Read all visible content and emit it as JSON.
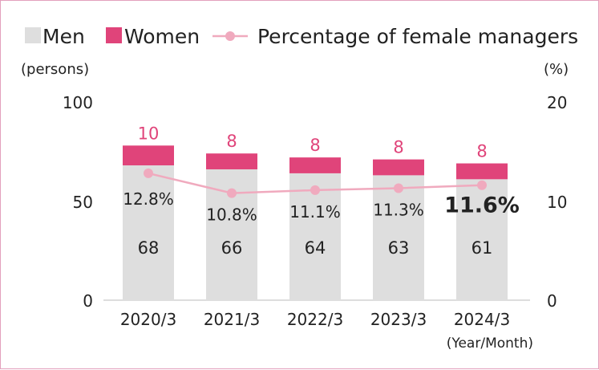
{
  "chart_data": {
    "type": "bar",
    "stacked": true,
    "categories": [
      "2020/3",
      "2021/3",
      "2022/3",
      "2023/3",
      "2024/3"
    ],
    "series": [
      {
        "name": "Men",
        "values": [
          68,
          66,
          64,
          63,
          61
        ],
        "color": "#dedede"
      },
      {
        "name": "Women",
        "values": [
          10,
          8,
          8,
          8,
          8
        ],
        "color": "#e0447a"
      }
    ],
    "line_series": {
      "name": "Percentage of female managers",
      "values": [
        12.8,
        10.8,
        11.1,
        11.3,
        11.6
      ],
      "labels": [
        "12.8%",
        "10.8%",
        "11.1%",
        "11.3%",
        "11.6%"
      ],
      "color": "#f0aabe",
      "axis": "right"
    },
    "yleft": {
      "label": "(persons)",
      "ticks": [
        "100",
        "50",
        "0"
      ],
      "lim": [
        0,
        100
      ]
    },
    "yright": {
      "label": "(%)",
      "ticks": [
        "20",
        "10",
        "0"
      ],
      "lim": [
        0,
        20
      ]
    },
    "xlabel": "(Year/Month)",
    "legend_position": "top",
    "highlight_last": true
  }
}
